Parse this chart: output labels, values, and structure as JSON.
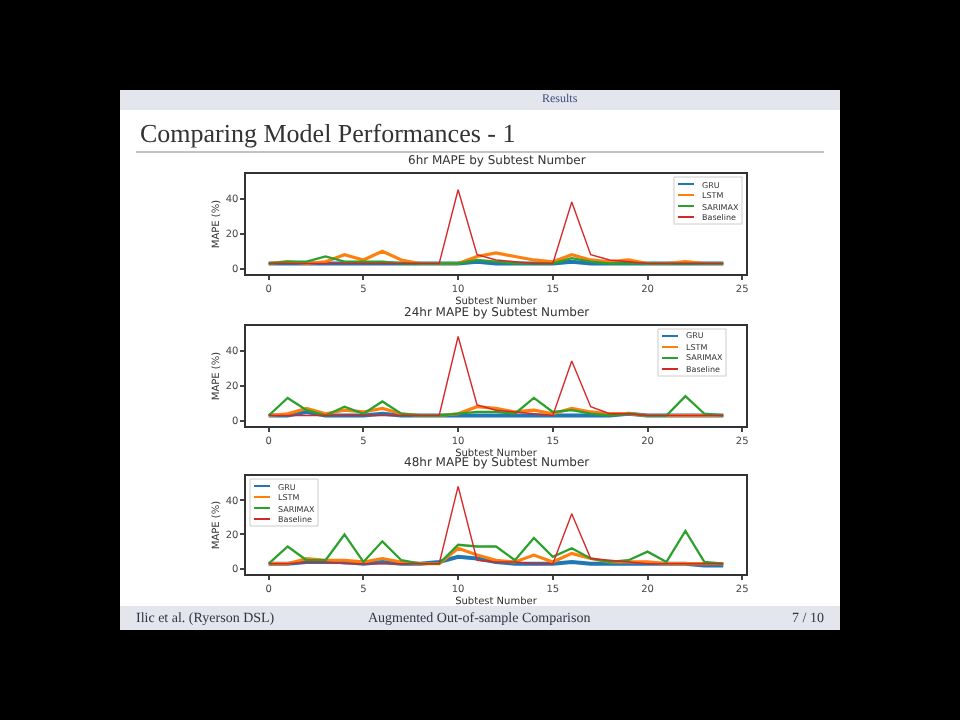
{
  "chart_data": [
    {
      "type": "line",
      "title": "6hr MAPE by Subtest Number",
      "xlabel": "Subtest Number",
      "ylabel": "MAPE (%)",
      "x": [
        0,
        1,
        2,
        3,
        4,
        5,
        6,
        7,
        8,
        9,
        10,
        11,
        12,
        13,
        14,
        15,
        16,
        17,
        18,
        19,
        20,
        21,
        22,
        23,
        24
      ],
      "xlim": [
        -1.2,
        25.2
      ],
      "xticks": [
        0,
        5,
        10,
        15,
        20,
        25
      ],
      "ylim": [
        -3,
        54
      ],
      "yticks": [
        0,
        20,
        40
      ],
      "grid": false,
      "legend": "top right",
      "series": [
        {
          "name": "GRU",
          "color": "#1f77b4",
          "values": [
            3,
            3,
            3,
            3,
            3,
            3,
            3,
            3,
            3,
            3,
            3,
            4,
            3,
            3,
            3,
            3,
            4,
            3,
            3,
            3,
            3,
            3,
            3,
            3,
            3
          ]
        },
        {
          "name": "LSTM",
          "color": "#ff7f0e",
          "values": [
            3,
            4,
            3,
            4,
            8,
            5,
            10,
            5,
            3,
            3,
            3,
            7,
            9,
            7,
            5,
            4,
            8,
            5,
            4,
            5,
            3,
            3,
            4,
            3,
            3
          ]
        },
        {
          "name": "SARIMAX",
          "color": "#2ca02c",
          "values": [
            3,
            4,
            4,
            7,
            4,
            4,
            4,
            3,
            3,
            3,
            3,
            5,
            4,
            3,
            3,
            3,
            6,
            4,
            3,
            3,
            3,
            3,
            3,
            3,
            3
          ]
        },
        {
          "name": "Baseline",
          "color": "#d62728",
          "values": [
            3,
            3,
            3,
            3,
            3,
            3,
            3,
            3,
            3,
            3,
            45,
            8,
            5,
            4,
            3,
            3,
            38,
            8,
            5,
            4,
            3,
            3,
            3,
            3,
            3
          ]
        }
      ]
    },
    {
      "type": "line",
      "title": "24hr MAPE by Subtest Number",
      "xlabel": "Subtest Number",
      "ylabel": "MAPE (%)",
      "x": [
        0,
        1,
        2,
        3,
        4,
        5,
        6,
        7,
        8,
        9,
        10,
        11,
        12,
        13,
        14,
        15,
        16,
        17,
        18,
        19,
        20,
        21,
        22,
        23,
        24
      ],
      "xlim": [
        -1.2,
        25.2
      ],
      "xticks": [
        0,
        5,
        10,
        15,
        20,
        25
      ],
      "ylim": [
        -3,
        54
      ],
      "yticks": [
        0,
        20,
        40
      ],
      "grid": false,
      "legend": "top right",
      "series": [
        {
          "name": "GRU",
          "color": "#1f77b4",
          "values": [
            3,
            3,
            5,
            3,
            3,
            3,
            4,
            3,
            3,
            3,
            3,
            3,
            3,
            3,
            3,
            3,
            3,
            3,
            3,
            4,
            3,
            3,
            3,
            3,
            3
          ]
        },
        {
          "name": "LSTM",
          "color": "#ff7f0e",
          "values": [
            3,
            4,
            7,
            4,
            6,
            5,
            7,
            4,
            3,
            3,
            4,
            8,
            7,
            5,
            6,
            4,
            7,
            5,
            4,
            4,
            3,
            3,
            3,
            3,
            3
          ]
        },
        {
          "name": "SARIMAX",
          "color": "#2ca02c",
          "values": [
            3,
            13,
            6,
            3,
            8,
            4,
            11,
            4,
            3,
            3,
            4,
            5,
            5,
            4,
            13,
            5,
            6,
            4,
            3,
            4,
            3,
            3,
            14,
            4,
            3
          ]
        },
        {
          "name": "Baseline",
          "color": "#d62728",
          "values": [
            3,
            3,
            3,
            3,
            3,
            3,
            3,
            3,
            3,
            3,
            48,
            9,
            6,
            5,
            4,
            3,
            34,
            8,
            4,
            4,
            3,
            3,
            3,
            3,
            3
          ]
        }
      ]
    },
    {
      "type": "line",
      "title": "48hr MAPE by Subtest Number",
      "xlabel": "Subtest Number",
      "ylabel": "MAPE (%)",
      "x": [
        0,
        1,
        2,
        3,
        4,
        5,
        6,
        7,
        8,
        9,
        10,
        11,
        12,
        13,
        14,
        15,
        16,
        17,
        18,
        19,
        20,
        21,
        22,
        23,
        24
      ],
      "xlim": [
        -1.2,
        25.2
      ],
      "xticks": [
        0,
        5,
        10,
        15,
        20,
        25
      ],
      "ylim": [
        -3,
        54
      ],
      "yticks": [
        0,
        20,
        40
      ],
      "grid": false,
      "legend": "top left",
      "series": [
        {
          "name": "GRU",
          "color": "#1f77b4",
          "values": [
            3,
            3,
            4,
            4,
            4,
            3,
            4,
            3,
            3,
            4,
            7,
            6,
            4,
            3,
            3,
            3,
            4,
            3,
            3,
            3,
            3,
            3,
            3,
            2,
            2
          ]
        },
        {
          "name": "LSTM",
          "color": "#ff7f0e",
          "values": [
            3,
            3,
            6,
            5,
            5,
            4,
            6,
            4,
            3,
            3,
            12,
            8,
            5,
            4,
            8,
            4,
            9,
            6,
            4,
            4,
            4,
            3,
            3,
            3,
            3
          ]
        },
        {
          "name": "SARIMAX",
          "color": "#2ca02c",
          "values": [
            3,
            13,
            5,
            5,
            20,
            4,
            16,
            5,
            3,
            3,
            14,
            13,
            13,
            5,
            18,
            7,
            12,
            6,
            4,
            5,
            10,
            4,
            22,
            4,
            3
          ]
        },
        {
          "name": "Baseline",
          "color": "#d62728",
          "values": [
            3,
            3,
            4,
            4,
            3,
            3,
            3,
            3,
            3,
            3,
            48,
            5,
            4,
            4,
            3,
            3,
            32,
            6,
            5,
            4,
            3,
            3,
            3,
            3,
            3
          ]
        }
      ]
    },
    {
      "type": "other",
      "annotations": [
        "Results",
        "Comparing Model Performances - 1",
        "Ilic et al. (Ryerson DSL)",
        "Augmented Out-of-sample Comparison",
        "7 / 10"
      ]
    }
  ]
}
